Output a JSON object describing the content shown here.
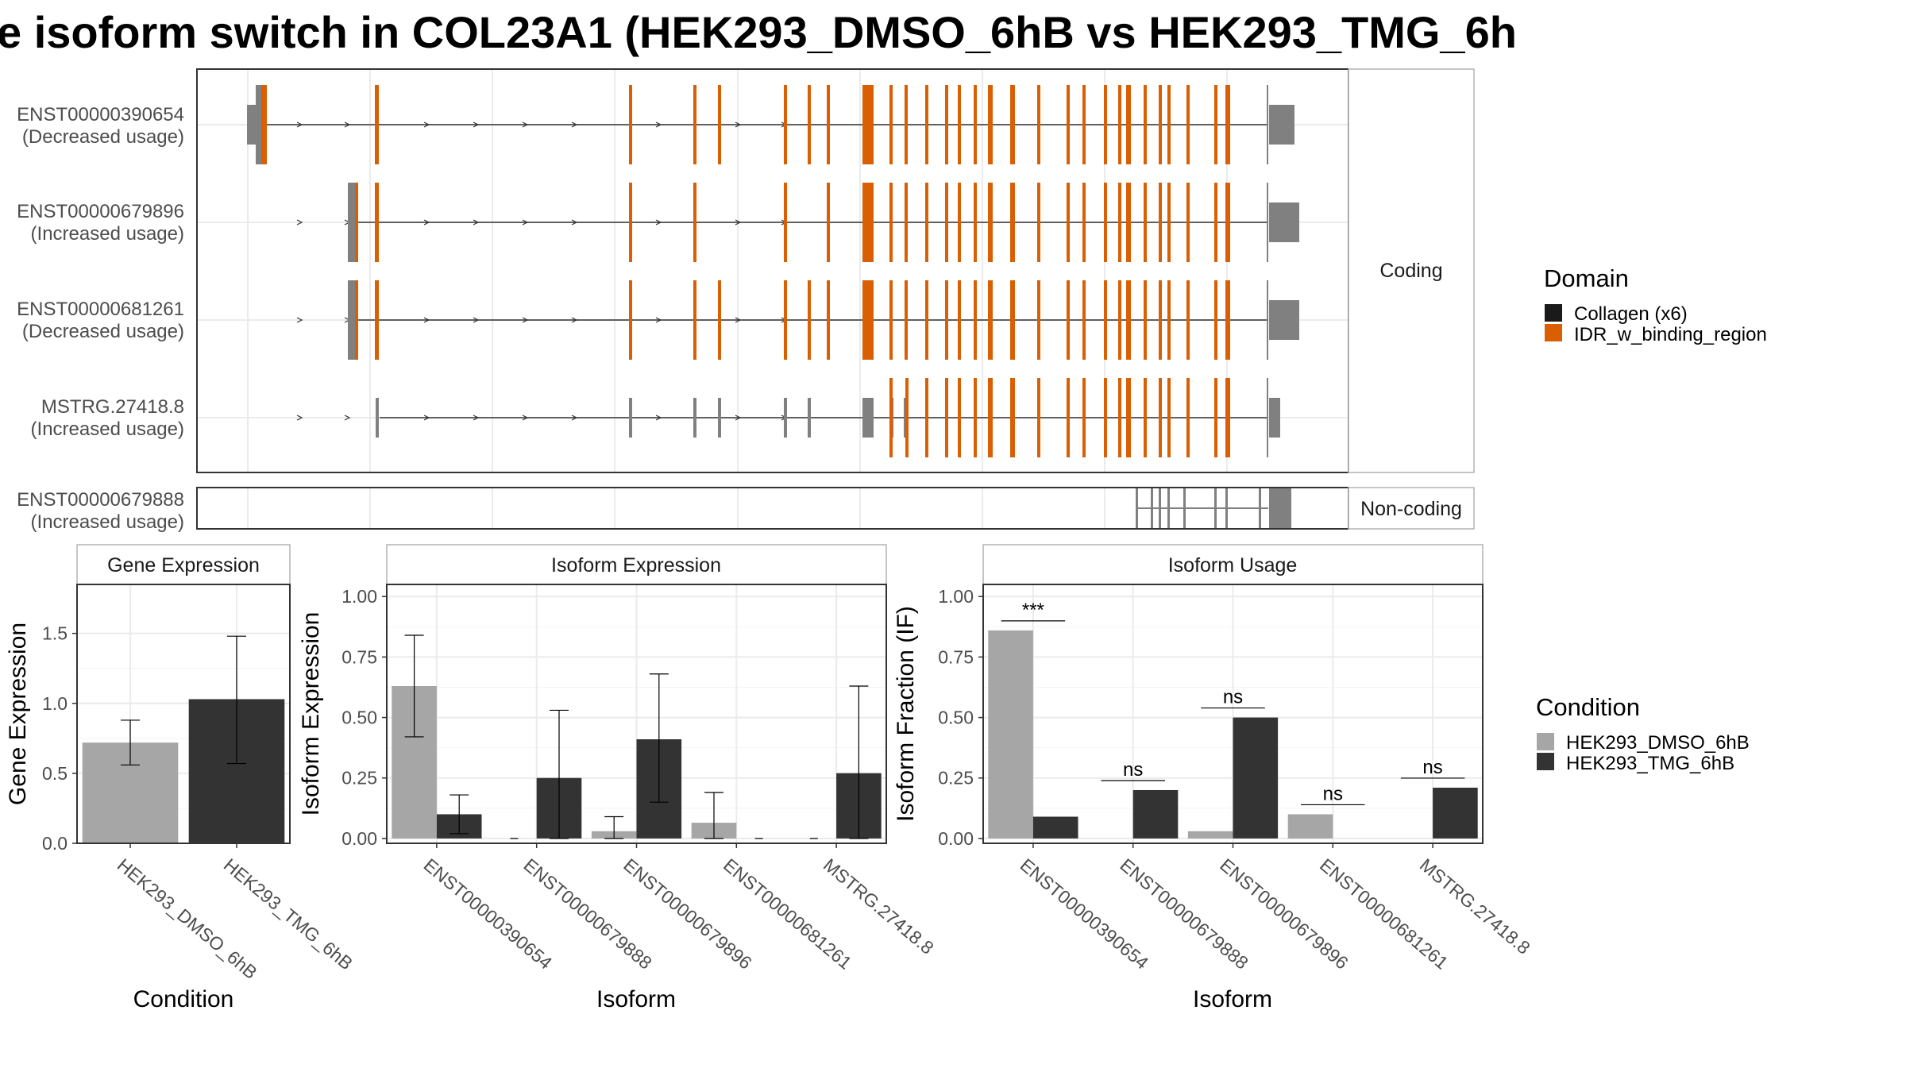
{
  "title": "e isoform switch in COL23A1 (HEK293_DMSO_6hB vs HEK293_TMG_6h",
  "colors": {
    "collagen": "#1a1a1a",
    "idr": "#d95f02",
    "noncoding_exon": "#808080",
    "dmso": "#a6a6a6",
    "tmg": "#333333",
    "grid": "#ebebeb",
    "panel_border": "#333333",
    "strip_border": "#b3b3b3"
  },
  "structure": {
    "facet_coding": "Coding",
    "facet_noncoding": "Non-coding",
    "transcripts": [
      {
        "id": "ENST00000390654",
        "note": "(Decreased usage)",
        "group": "coding"
      },
      {
        "id": "ENST00000679896",
        "note": "(Increased usage)",
        "group": "coding"
      },
      {
        "id": "ENST00000681261",
        "note": "(Decreased usage)",
        "group": "coding"
      },
      {
        "id": "MSTRG.27418.8",
        "note": "(Increased usage)",
        "group": "coding"
      },
      {
        "id": "ENST00000679888",
        "note": "(Increased usage)",
        "group": "noncoding"
      }
    ]
  },
  "legend_domain": {
    "title": "Domain",
    "items": [
      {
        "label": "Collagen (x6)",
        "color_key": "collagen"
      },
      {
        "label": "IDR_w_binding_region",
        "color_key": "idr"
      }
    ]
  },
  "legend_condition": {
    "title": "Condition",
    "items": [
      {
        "label": "HEK293_DMSO_6hB",
        "color_key": "dmso"
      },
      {
        "label": "HEK293_TMG_6hB",
        "color_key": "tmg"
      }
    ]
  },
  "chart_data": [
    {
      "type": "bar",
      "title": "Gene Expression",
      "xlabel": "Condition",
      "ylabel": "Gene Expression",
      "ylim": [
        0,
        1.85
      ],
      "yticks": [
        "0.0",
        "0.5",
        "1.0",
        "1.5"
      ],
      "categories": [
        "HEK293_DMSO_6hB",
        "HEK293_TMG_6hB"
      ],
      "values": [
        0.72,
        1.03
      ],
      "error_low": [
        0.56,
        0.57
      ],
      "error_high": [
        0.88,
        1.48
      ]
    },
    {
      "type": "bar",
      "title": "Isoform Expression",
      "xlabel": "Isoform",
      "ylabel": "Isoform Expression",
      "ylim": [
        -0.02,
        1.05
      ],
      "yticks": [
        "0.00",
        "0.25",
        "0.50",
        "0.75",
        "1.00"
      ],
      "categories": [
        "ENST00000390654",
        "ENST00000679888",
        "ENST00000679896",
        "ENST00000681261",
        "MSTRG.27418.8"
      ],
      "series": [
        {
          "name": "HEK293_DMSO_6hB",
          "values": [
            0.63,
            0.0,
            0.03,
            0.065,
            0.0
          ],
          "error_low": [
            0.42,
            0.0,
            0.0,
            0.0,
            0.0
          ],
          "error_high": [
            0.84,
            0.0,
            0.09,
            0.19,
            0.0
          ]
        },
        {
          "name": "HEK293_TMG_6hB",
          "values": [
            0.1,
            0.25,
            0.41,
            0.0,
            0.27
          ],
          "error_low": [
            0.02,
            0.0,
            0.15,
            0.0,
            0.0
          ],
          "error_high": [
            0.18,
            0.53,
            0.68,
            0.0,
            0.63
          ]
        }
      ]
    },
    {
      "type": "bar",
      "title": "Isoform Usage",
      "xlabel": "Isoform",
      "ylabel": "Isoform Fraction (IF)",
      "ylim": [
        -0.02,
        1.05
      ],
      "yticks": [
        "0.00",
        "0.25",
        "0.50",
        "0.75",
        "1.00"
      ],
      "categories": [
        "ENST00000390654",
        "ENST00000679888",
        "ENST00000679896",
        "ENST00000681261",
        "MSTRG.27418.8"
      ],
      "series": [
        {
          "name": "HEK293_DMSO_6hB",
          "values": [
            0.86,
            0.0,
            0.03,
            0.1,
            0.0
          ]
        },
        {
          "name": "HEK293_TMG_6hB",
          "values": [
            0.09,
            0.2,
            0.5,
            0.0,
            0.21
          ]
        }
      ],
      "significance": [
        "***",
        "ns",
        "ns",
        "ns",
        "ns"
      ]
    }
  ]
}
